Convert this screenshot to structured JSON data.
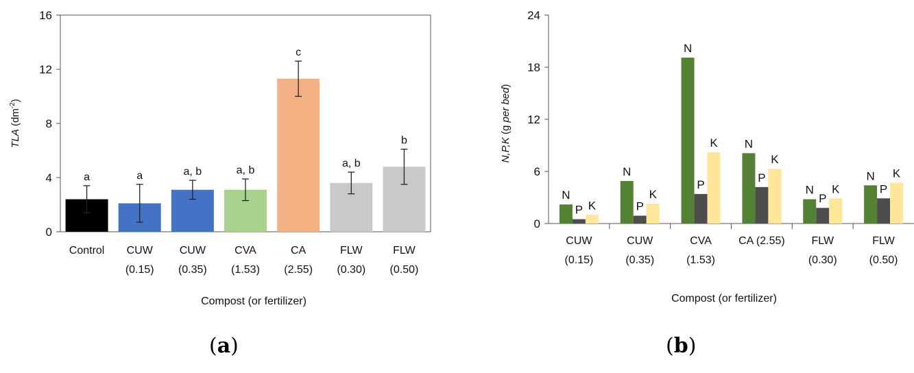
{
  "panel_labels": {
    "a_open": "(",
    "a_letter": "a",
    "a_close": ")",
    "b_open": "(",
    "b_letter": "b",
    "b_close": ")"
  },
  "colors": {
    "black": "#000000",
    "blue": "#4472C4",
    "light_green": "#A9D18E",
    "orange": "#F4B183",
    "light_gray": "#C9C9C9",
    "dark_green": "#548235",
    "dark_gray": "#4D4D4D",
    "light_yellow": "#FFE699"
  },
  "chart_data": [
    {
      "type": "bar",
      "panel": "a",
      "ylabel": "TLA",
      "ylabel_unit": "(dm",
      "ylabel_sup": "-2",
      "ylabel_close": ")",
      "xlabel": "Compost (or fertilizer)",
      "ylim": [
        0,
        16
      ],
      "yticks": [
        "0",
        "4",
        "8",
        "12",
        "16"
      ],
      "grid": false,
      "categories": [
        {
          "line1": "Control",
          "line2": ""
        },
        {
          "line1": "CUW",
          "line2": "(0.15)"
        },
        {
          "line1": "CUW",
          "line2": "(0.35)"
        },
        {
          "line1": "CVA",
          "line2": "(1.53)"
        },
        {
          "line1": "CA",
          "line2": "(2.55)"
        },
        {
          "line1": "FLW",
          "line2": "(0.30)"
        },
        {
          "line1": "FLW",
          "line2": "(0.50)"
        }
      ],
      "values": [
        2.4,
        2.1,
        3.1,
        3.1,
        11.3,
        3.6,
        4.8
      ],
      "errors": [
        1.0,
        1.4,
        0.7,
        0.8,
        1.3,
        0.8,
        1.3
      ],
      "annotations": [
        "a",
        "a",
        "a, b",
        "a, b",
        "c",
        "a, b",
        "b"
      ],
      "bar_colors": [
        "#000000",
        "#4472C4",
        "#4472C4",
        "#A9D18E",
        "#F4B183",
        "#C9C9C9",
        "#C9C9C9"
      ]
    },
    {
      "type": "bar",
      "panel": "b",
      "ylabel": "N,P,K",
      "ylabel_unit": "(g ",
      "ylabel_italic_unit": "per bed",
      "ylabel_close": ")",
      "xlabel": "Compost (or fertilizer)",
      "ylim": [
        0,
        24
      ],
      "yticks": [
        "0",
        "6",
        "12",
        "18",
        "24"
      ],
      "grid": false,
      "categories": [
        {
          "line1": "CUW",
          "line2": "(0.15)"
        },
        {
          "line1": "CUW",
          "line2": "(0.35)"
        },
        {
          "line1": "CVA",
          "line2": "(1.53)"
        },
        {
          "line1": "CA  (2.55)",
          "line2": ""
        },
        {
          "line1": "FLW",
          "line2": "(0.30)"
        },
        {
          "line1": "FLW",
          "line2": "(0.50)"
        }
      ],
      "series": [
        {
          "label": "N",
          "color": "#548235",
          "values": [
            2.2,
            4.9,
            19.1,
            8.1,
            2.8,
            4.4
          ]
        },
        {
          "label": "P",
          "color": "#4D4D4D",
          "values": [
            0.5,
            0.9,
            3.4,
            4.2,
            1.8,
            2.9
          ]
        },
        {
          "label": "K",
          "color": "#FFE699",
          "values": [
            1.0,
            2.3,
            8.2,
            6.3,
            2.9,
            4.7
          ]
        }
      ]
    }
  ]
}
